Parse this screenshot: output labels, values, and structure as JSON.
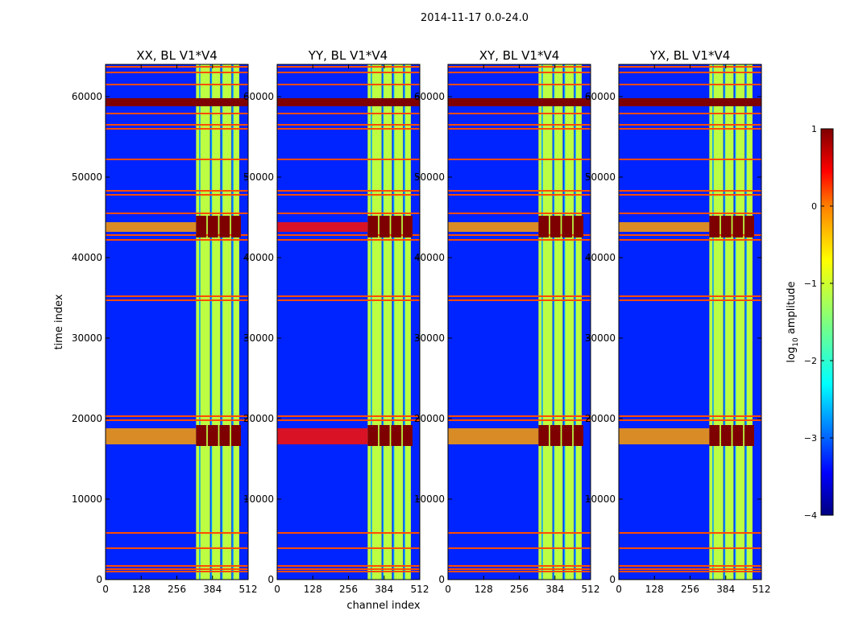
{
  "figure": {
    "suptitle": "2014-11-17 0.0-24.0"
  },
  "colors": {
    "colormap": [
      "#00007f",
      "#0000ff",
      "#007fff",
      "#00ffff",
      "#7fff7f",
      "#ffff00",
      "#ff7f00",
      "#ff0000",
      "#7f0000"
    ],
    "background": "#ffffff",
    "frame": "#000000"
  },
  "chart_data": {
    "type": "heatmap",
    "title": "2014-11-17 0.0-24.0",
    "xlabel": "channel index",
    "ylabel": "time index",
    "xlim": [
      0,
      512
    ],
    "ylim": [
      0,
      64000
    ],
    "xticks": [
      "0",
      "128",
      "256",
      "384",
      "512"
    ],
    "yticks": [
      "0",
      "10000",
      "20000",
      "30000",
      "40000",
      "50000",
      "60000"
    ],
    "xtick_values": [
      0,
      128,
      256,
      384,
      512
    ],
    "ytick_values": [
      0,
      10000,
      20000,
      30000,
      40000,
      50000,
      60000
    ],
    "panels": [
      {
        "title": "XX, BL V1*V4",
        "ylabel": "time index"
      },
      {
        "title": "YY, BL V1*V4",
        "xlabel": "channel index"
      },
      {
        "title": "XY, BL V1*V4"
      },
      {
        "title": "YX, BL V1*V4"
      }
    ],
    "colorbar": {
      "label": "log10 amplitude",
      "label_main": "log",
      "label_sub": "10",
      "label_rest": " amplitude",
      "ticks": [
        "1",
        "0",
        "−1",
        "−2",
        "−3",
        "−4"
      ],
      "tick_values": [
        1,
        0,
        -1,
        -2,
        -3,
        -4
      ],
      "range": [
        -4,
        1
      ]
    },
    "features": {
      "background_level": -3.2,
      "band_channels": [
        [
          325,
          340
        ],
        [
          340,
          375
        ],
        [
          380,
          412
        ],
        [
          418,
          452
        ],
        [
          458,
          480
        ]
      ],
      "band_level": -1.2,
      "band_gap_channels": [
        336,
        378,
        416,
        455
      ],
      "saturated_blocks": {
        "time_ranges": [
          [
            16600,
            19200
          ],
          [
            42500,
            45200
          ]
        ],
        "channel_ranges": [
          [
            325,
            362
          ],
          [
            367,
            404
          ],
          [
            409,
            446
          ],
          [
            451,
            486
          ]
        ],
        "level": 1
      },
      "strong_rfi_rows": [
        [
          58800,
          59800
        ]
      ],
      "rfi_rows": [
        1000,
        1300,
        1700,
        3900,
        5800,
        19800,
        20300,
        34700,
        35200,
        42200,
        42800,
        45500,
        47800,
        48300,
        52200,
        56000,
        56500,
        57900,
        61500,
        63000,
        63700
      ],
      "broadband_lowchannel_rows": [
        [
          16800,
          18800
        ],
        [
          43200,
          44400
        ]
      ]
    }
  }
}
